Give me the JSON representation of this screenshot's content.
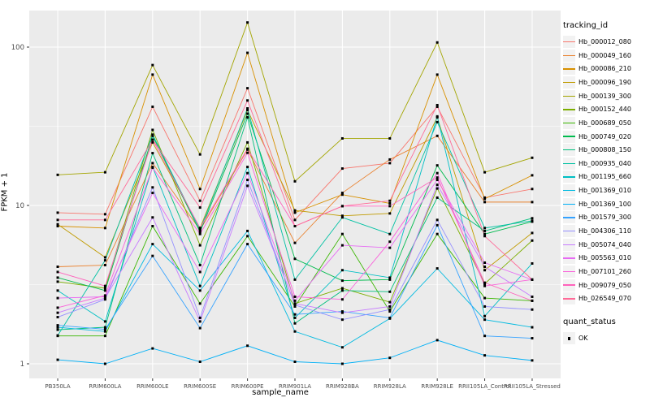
{
  "figure": {
    "xlabel": "sample_name",
    "ylabel": "FPKM + 1",
    "legend_title": "tracking_id",
    "legend2_title": "quant_status",
    "legend2_item": "OK"
  },
  "chart_data": {
    "type": "line",
    "title": "",
    "xlabel": "sample_name",
    "ylabel": "FPKM + 1",
    "y_scale": "log10",
    "ylim": [
      0.85,
      170
    ],
    "y_ticks": [
      1,
      10,
      100
    ],
    "grid": "white major and minor on gray panel",
    "legend_position": "right",
    "panel_bg": "#EBEBEB",
    "legend_key_bg": "#F2F2F2",
    "marker": "small black square (quant_status OK)",
    "categories": [
      "PB350LA",
      "RRIM600LA",
      "RRIM600LE",
      "RRIM600SE",
      "RRIM600PE",
      "RRIM901LA",
      "RRIM928BA",
      "RRIM928LA",
      "RRIM928LE",
      "RRII105LA_Control",
      "RRII105LA_Stressed"
    ],
    "series": [
      {
        "name": "Hb_000012_080",
        "color": "#F8766D",
        "values": [
          9.0,
          8.8,
          42,
          10.7,
          55,
          8.1,
          17.1,
          18.5,
          42,
          11.2,
          12.7
        ]
      },
      {
        "name": "Hb_000049_160",
        "color": "#EA8331",
        "values": [
          4.1,
          4.2,
          18.5,
          7.0,
          22.5,
          5.8,
          12.0,
          19.5,
          27.5,
          10.5,
          10.5
        ]
      },
      {
        "name": "Hb_000086_210",
        "color": "#D89000",
        "values": [
          7.4,
          7.2,
          67,
          12.7,
          92,
          9.0,
          11.7,
          10.3,
          67,
          11.0,
          15.5
        ]
      },
      {
        "name": "Hb_000096_190",
        "color": "#C09B00",
        "values": [
          7.6,
          4.7,
          25,
          7.2,
          40,
          9.3,
          8.6,
          8.9,
          36,
          3.9,
          6.7
        ]
      },
      {
        "name": "Hb_000139_300",
        "color": "#A3A500",
        "values": [
          15.6,
          16.2,
          77,
          21,
          143,
          14.2,
          26.5,
          26.5,
          107,
          16.2,
          20
        ]
      },
      {
        "name": "Hb_000152_440",
        "color": "#7CAE00",
        "values": [
          3.3,
          3.0,
          30,
          5.6,
          25,
          2.4,
          3.0,
          2.45,
          12.8,
          3.2,
          6.0
        ]
      },
      {
        "name": "Hb_000689_050",
        "color": "#39B600",
        "values": [
          1.5,
          1.5,
          7.4,
          2.4,
          6.4,
          2.3,
          6.6,
          2.14,
          6.6,
          2.6,
          2.5
        ]
      },
      {
        "name": "Hb_000749_020",
        "color": "#00BB4E",
        "values": [
          3.5,
          2.9,
          27.5,
          6.8,
          38,
          4.6,
          3.35,
          3.4,
          17.9,
          6.6,
          7.9
        ]
      },
      {
        "name": "Hb_000808_150",
        "color": "#00BF7D",
        "values": [
          1.64,
          1.7,
          21.4,
          4.2,
          36,
          1.8,
          2.9,
          2.85,
          11.2,
          6.9,
          8.3
        ]
      },
      {
        "name": "Hb_000935_040",
        "color": "#00C1A3",
        "values": [
          1.51,
          4.5,
          28,
          7.0,
          41,
          3.4,
          8.4,
          6.6,
          33.6,
          7.2,
          8.0
        ]
      },
      {
        "name": "Hb_001195_660",
        "color": "#00BFC4",
        "values": [
          2.9,
          1.85,
          17.5,
          3.1,
          17.5,
          1.95,
          3.9,
          3.5,
          36.5,
          2.0,
          4.3
        ]
      },
      {
        "name": "Hb_001369_010",
        "color": "#00BAE0",
        "values": [
          1.7,
          1.6,
          5.7,
          2.9,
          6.9,
          1.6,
          1.27,
          1.93,
          4.0,
          1.9,
          1.7
        ]
      },
      {
        "name": "Hb_001369_100",
        "color": "#00B0F6",
        "values": [
          1.06,
          1.0,
          1.25,
          1.03,
          1.3,
          1.03,
          1.0,
          1.09,
          1.41,
          1.13,
          1.05
        ]
      },
      {
        "name": "Hb_001579_300",
        "color": "#35A2FF",
        "values": [
          1.75,
          1.65,
          4.8,
          1.68,
          5.7,
          2.05,
          2.14,
          1.95,
          7.5,
          1.5,
          1.45
        ]
      },
      {
        "name": "Hb_004306_110",
        "color": "#9590FF",
        "values": [
          1.97,
          2.55,
          13.0,
          1.95,
          14.5,
          2.35,
          1.9,
          2.2,
          8.1,
          2.3,
          2.2
        ]
      },
      {
        "name": "Hb_005074_040",
        "color": "#C77CFF",
        "values": [
          2.1,
          2.6,
          8.4,
          1.85,
          13.3,
          2.4,
          2.1,
          2.3,
          13.5,
          4.1,
          2.65
        ]
      },
      {
        "name": "Hb_005563_010",
        "color": "#E76BF3",
        "values": [
          2.6,
          2.65,
          12.0,
          3.8,
          16,
          2.5,
          5.6,
          5.4,
          14.5,
          4.35,
          3.4
        ]
      },
      {
        "name": "Hb_007101_260",
        "color": "#FA62DB",
        "values": [
          2.26,
          2.7,
          17.3,
          6.6,
          21.5,
          2.65,
          2.55,
          5.9,
          16,
          3.1,
          3.4
        ]
      },
      {
        "name": "Hb_009079_050",
        "color": "#FF62BC",
        "values": [
          3.8,
          3.1,
          26,
          7.2,
          22.8,
          7.4,
          9.9,
          9.9,
          15,
          3.25,
          2.5
        ]
      },
      {
        "name": "Hb_026549_070",
        "color": "#FF6A98",
        "values": [
          8.1,
          8.1,
          26,
          9.7,
          46,
          7.4,
          9.9,
          10.7,
          43,
          6.4,
          3.4
        ]
      }
    ]
  }
}
